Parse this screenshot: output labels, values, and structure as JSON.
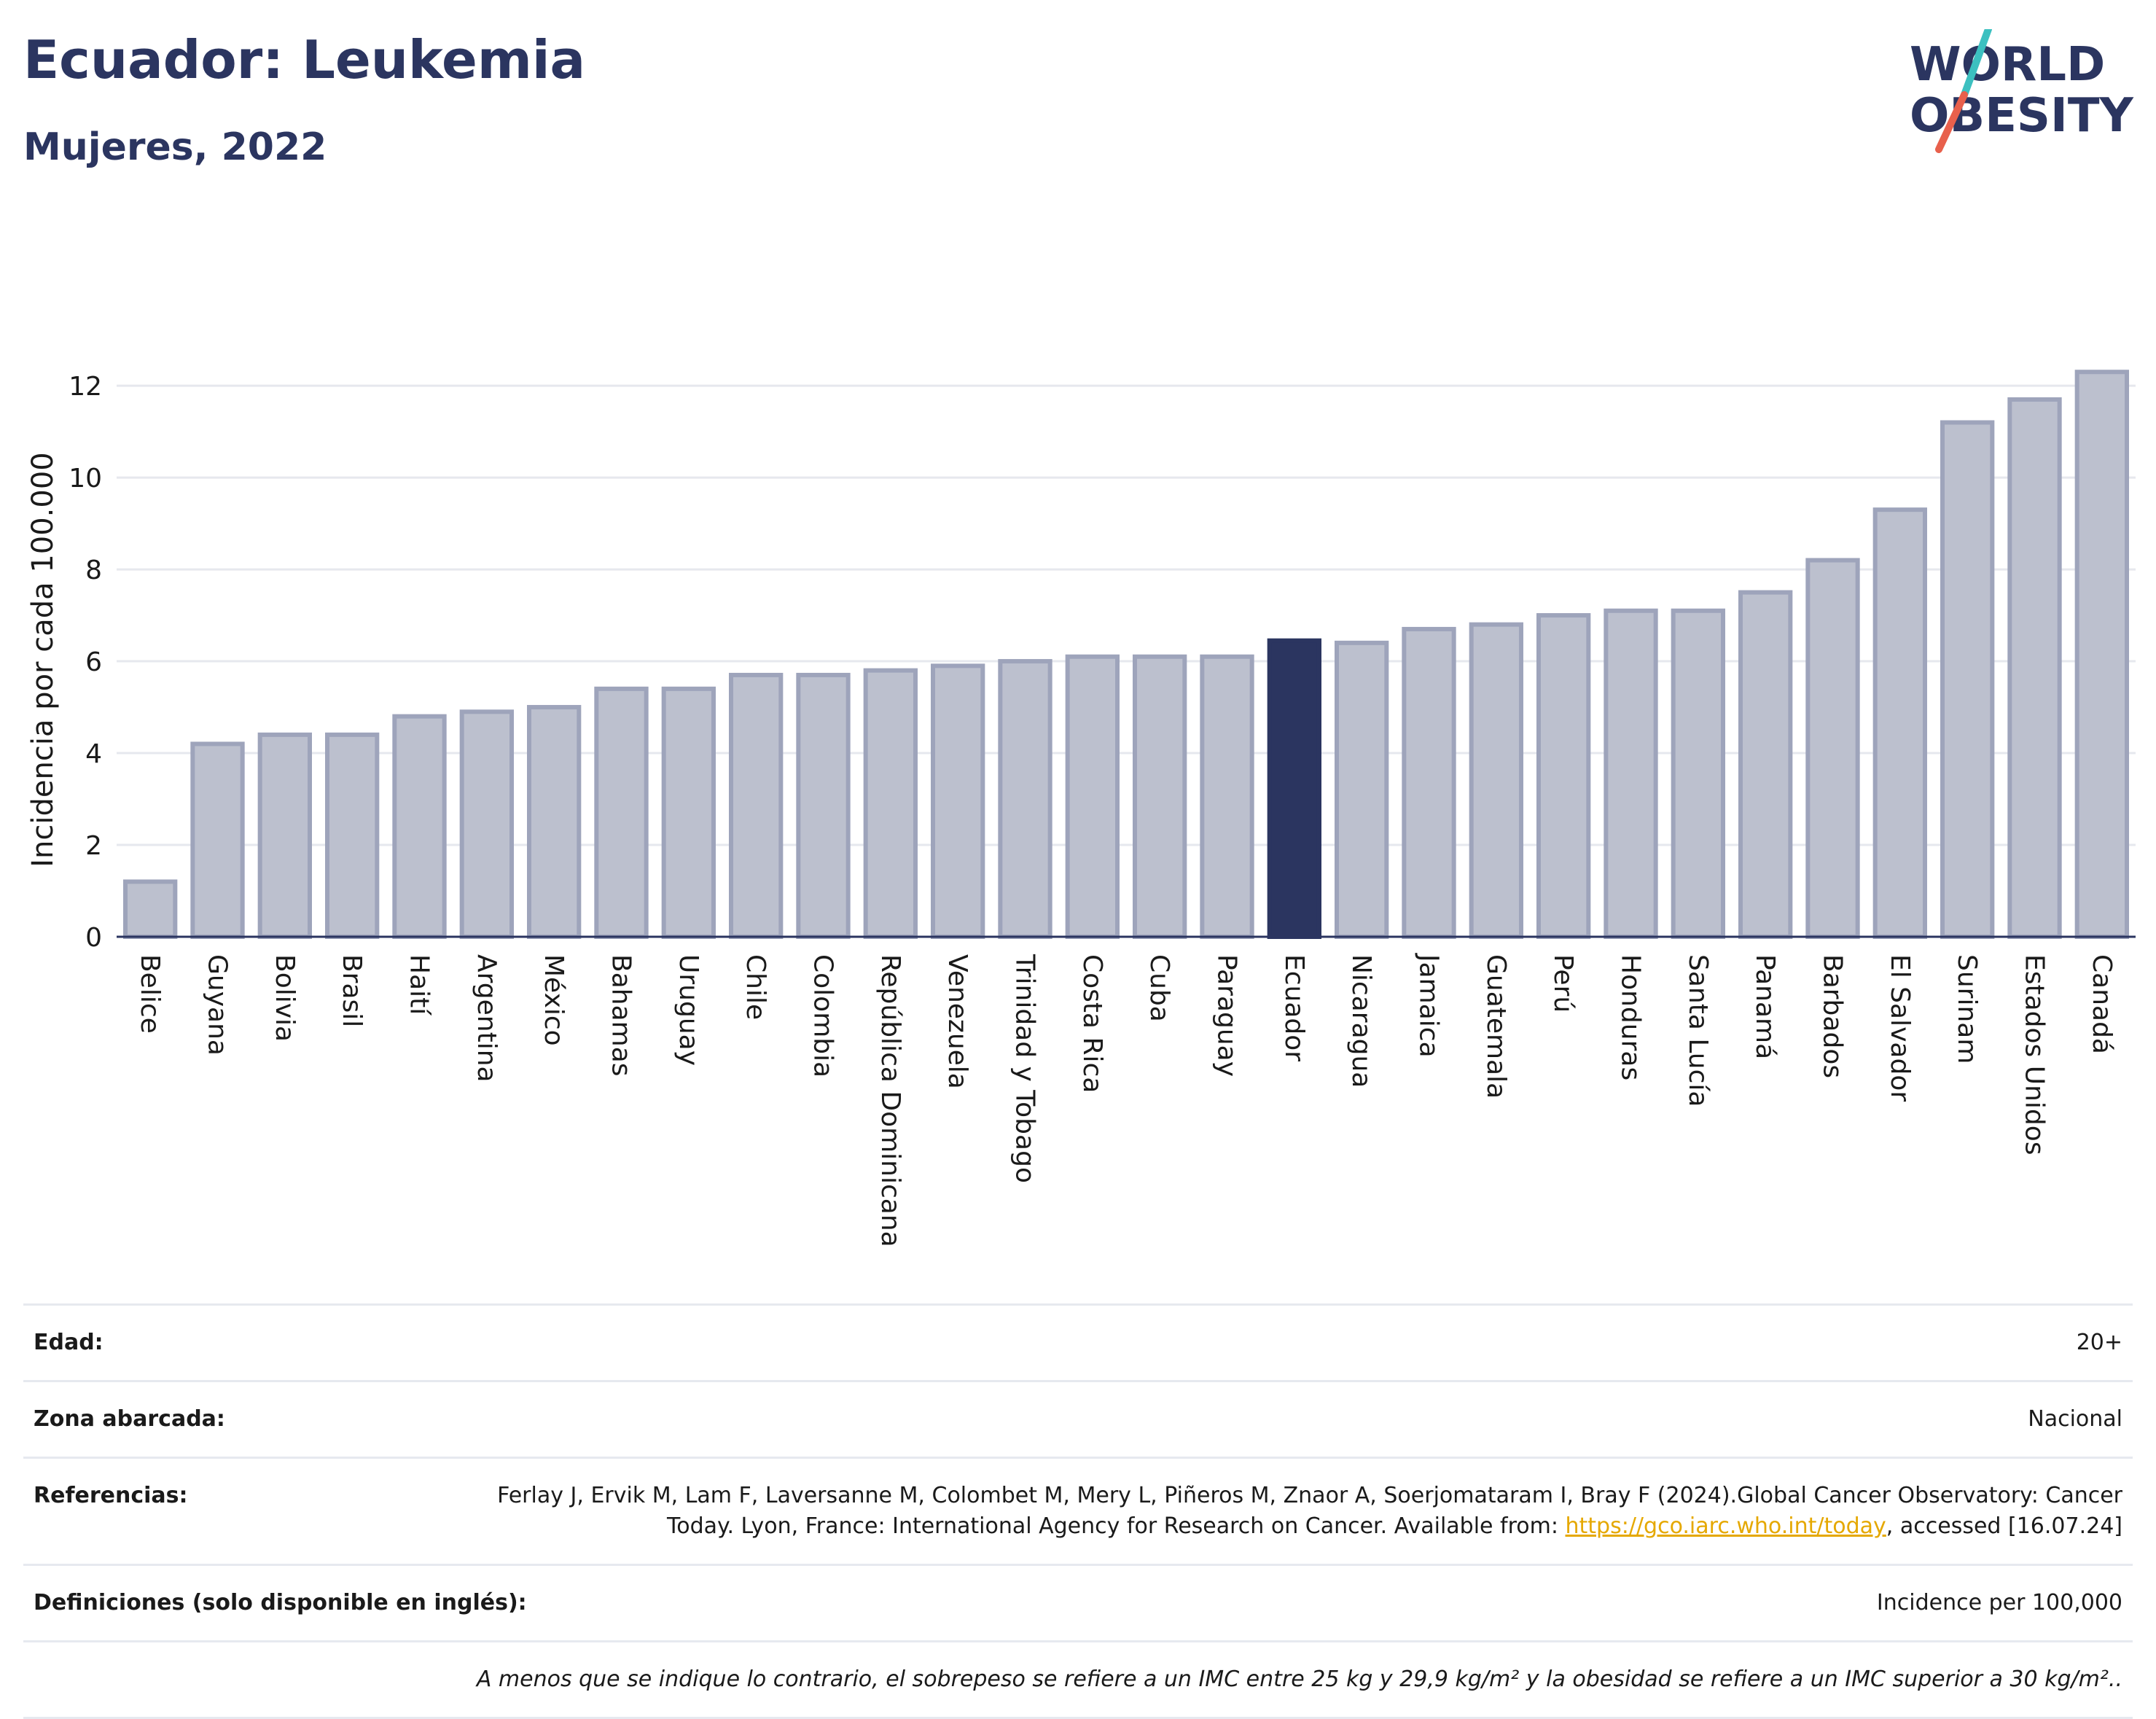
{
  "header": {
    "title": "Ecuador: Leukemia",
    "subtitle": "Mujeres, 2022"
  },
  "logo": {
    "line1": "WORLD",
    "line2": "OBESITY",
    "colors": {
      "text": "#2b3560",
      "slash_top": "#3cc0c0",
      "slash_bottom": "#e8604c"
    }
  },
  "colors": {
    "bar_fill": "#bcc0ce",
    "bar_stroke": "#9ea4bb",
    "highlight": "#2b3560",
    "grid": "#e6e8ee",
    "axis": "#2b3560"
  },
  "chart_data": {
    "type": "bar",
    "ylabel": "Incidencia por cada 100.000",
    "xlabel": "",
    "ylim": [
      0,
      12.7
    ],
    "yticks": [
      0,
      2,
      4,
      6,
      8,
      10,
      12
    ],
    "grid": true,
    "highlight": "Ecuador",
    "categories": [
      "Belice",
      "Guyana",
      "Bolivia",
      "Brasil",
      "Haití",
      "Argentina",
      "México",
      "Bahamas",
      "Uruguay",
      "Chile",
      "Colombia",
      "República Dominicana",
      "Venezuela",
      "Trinidad y Tobago",
      "Costa Rica",
      "Cuba",
      "Paraguay",
      "Ecuador",
      "Nicaragua",
      "Jamaica",
      "Guatemala",
      "Perú",
      "Honduras",
      "Santa Lucía",
      "Panamá",
      "Barbados",
      "El Salvador",
      "Surinam",
      "Estados Unidos",
      "Canadá"
    ],
    "values": [
      1.2,
      4.2,
      4.4,
      4.4,
      4.8,
      4.9,
      5.0,
      5.4,
      5.4,
      5.7,
      5.7,
      5.8,
      5.9,
      6.0,
      6.1,
      6.1,
      6.1,
      6.45,
      6.4,
      6.7,
      6.8,
      7.0,
      7.1,
      7.1,
      7.5,
      8.2,
      9.3,
      11.2,
      11.7,
      12.3
    ]
  },
  "info": {
    "age_label": "Edad:",
    "age_value": "20+",
    "zone_label": "Zona abarcada:",
    "zone_value": "Nacional",
    "refs_label": "Referencias:",
    "refs_text_1": "Ferlay J, Ervik M, Lam F, Laversanne M, Colombet M, Mery L, Piñeros M, Znaor A, Soerjomataram I, Bray F (2024).Global Cancer Observatory: Cancer Today. Lyon, France: International Agency for Research on Cancer. Available from: ",
    "refs_link": "https://gco.iarc.who.int/today",
    "refs_text_2": ", accessed [16.07.24]",
    "defs_label": "Definiciones (solo disponible en inglés):",
    "defs_value": "Incidence per 100,000",
    "note": "A menos que se indique lo contrario, el sobrepeso se refiere a un IMC entre 25 kg y 29,9 kg/m² y la obesidad se refiere a un IMC superior a 30 kg/m².."
  }
}
